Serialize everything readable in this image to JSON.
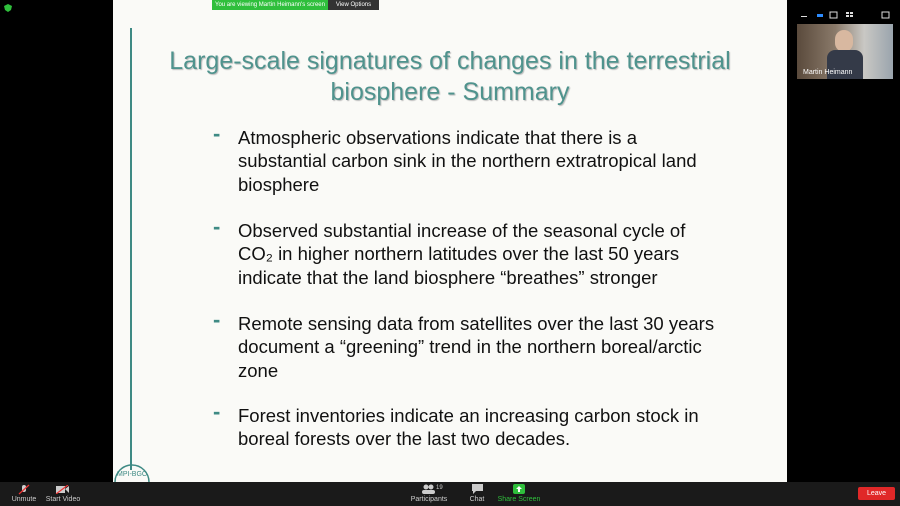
{
  "banner": {
    "viewing": "You are viewing Martin Heimann's screen",
    "view_options": "View Options"
  },
  "participant": {
    "name": "Martin Heimann"
  },
  "slide": {
    "title_lines": [
      "Large-scale signatures of changes in the terrestrial",
      "biosphere - Summary"
    ],
    "bullet_marker": "-",
    "bullets": [
      {
        "lines": [
          "Atmospheric observations indicate that there is a",
          "substantial carbon sink in the northern extratropical land",
          "biosphere"
        ]
      },
      {
        "lines": [
          "Observed substantial increase of the seasonal cycle of",
          "CO₂ in higher northern latitudes over the last 50 years",
          "indicate that the land biosphere “breathes” stronger"
        ]
      },
      {
        "lines": [
          "Remote sensing data from satellites over the last 30 years",
          "document a “greening” trend in the northern boreal/arctic",
          "zone"
        ]
      },
      {
        "lines": [
          "Forest inventories indicate an increasing carbon stock in",
          "boreal forests over the last two decades."
        ]
      }
    ],
    "logo": "MPI-BGC"
  },
  "toolbar": {
    "unmute": "Unmute",
    "start_video": "Start Video",
    "participants": "Participants",
    "participants_count": "19",
    "chat": "Chat",
    "share_screen": "Share Screen",
    "leave": "Leave"
  }
}
